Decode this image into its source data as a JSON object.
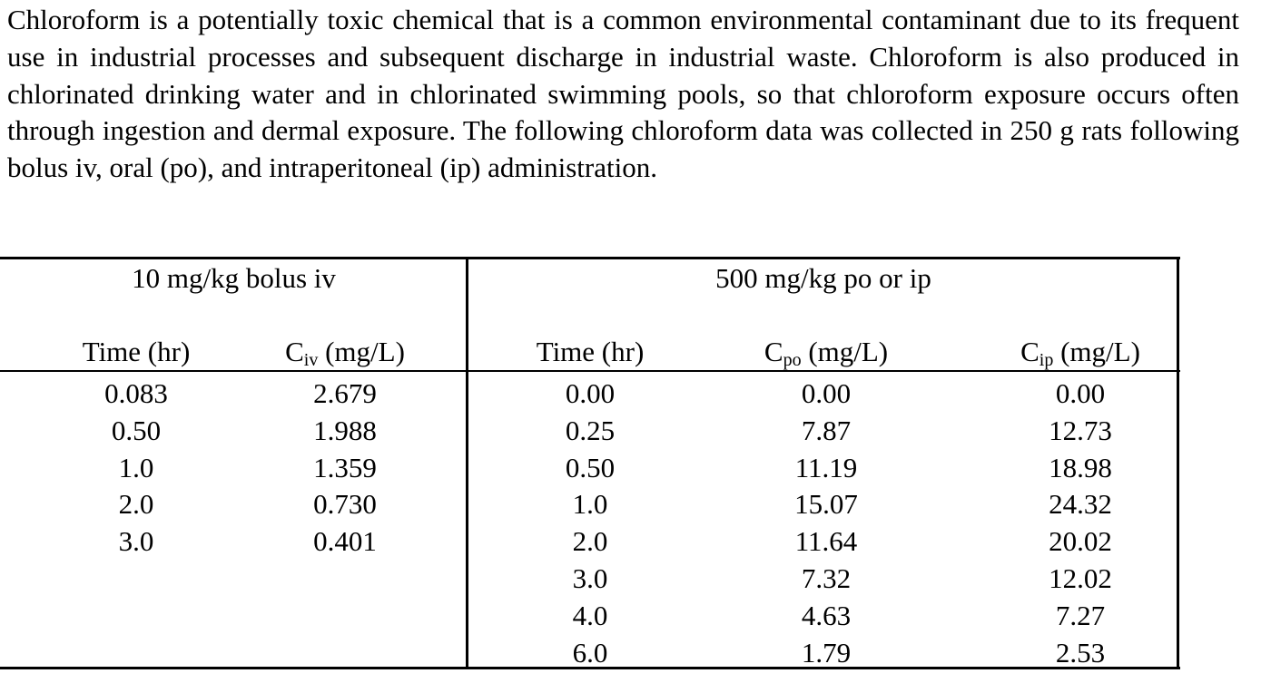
{
  "intro": "Chloroform is a potentially toxic chemical that is a common environmental contaminant due to its frequent use in industrial processes and subsequent discharge in industrial waste. Chloroform is also produced in chlorinated drinking water and in chlorinated swimming pools, so that chloroform exposure occurs often through ingestion and dermal exposure. The following chloroform data was collected in 250 g rats following bolus iv, oral (po), and intraperitoneal (ip) administration.",
  "table": {
    "iv_group_label": "10 mg/kg bolus iv",
    "oral_ip_group_label": "500 mg/kg po or ip",
    "headers": {
      "iv_time": "Time (hr)",
      "iv_conc_prefix": "C",
      "iv_conc_sub": "iv",
      "iv_conc_suffix": " (mg/L)",
      "oral_time": "Time (hr)",
      "po_conc_prefix": "C",
      "po_conc_sub": "po",
      "po_conc_suffix": " (mg/L)",
      "ip_conc_prefix": "C",
      "ip_conc_sub": "ip",
      "ip_conc_suffix": " (mg/L)"
    },
    "iv_rows": [
      {
        "time": "0.083",
        "conc": "2.679"
      },
      {
        "time": "0.50",
        "conc": "1.988"
      },
      {
        "time": "1.0",
        "conc": "1.359"
      },
      {
        "time": "2.0",
        "conc": "0.730"
      },
      {
        "time": "3.0",
        "conc": "0.401"
      }
    ],
    "oral_ip_rows": [
      {
        "time": "0.00",
        "po": "0.00",
        "ip": "0.00"
      },
      {
        "time": "0.25",
        "po": "7.87",
        "ip": "12.73"
      },
      {
        "time": "0.50",
        "po": "11.19",
        "ip": "18.98"
      },
      {
        "time": "1.0",
        "po": "15.07",
        "ip": "24.32"
      },
      {
        "time": "2.0",
        "po": "11.64",
        "ip": "20.02"
      },
      {
        "time": "3.0",
        "po": "7.32",
        "ip": "12.02"
      },
      {
        "time": "4.0",
        "po": "4.63",
        "ip": "7.27"
      },
      {
        "time": "6.0",
        "po": "1.79",
        "ip": "2.53"
      }
    ]
  }
}
